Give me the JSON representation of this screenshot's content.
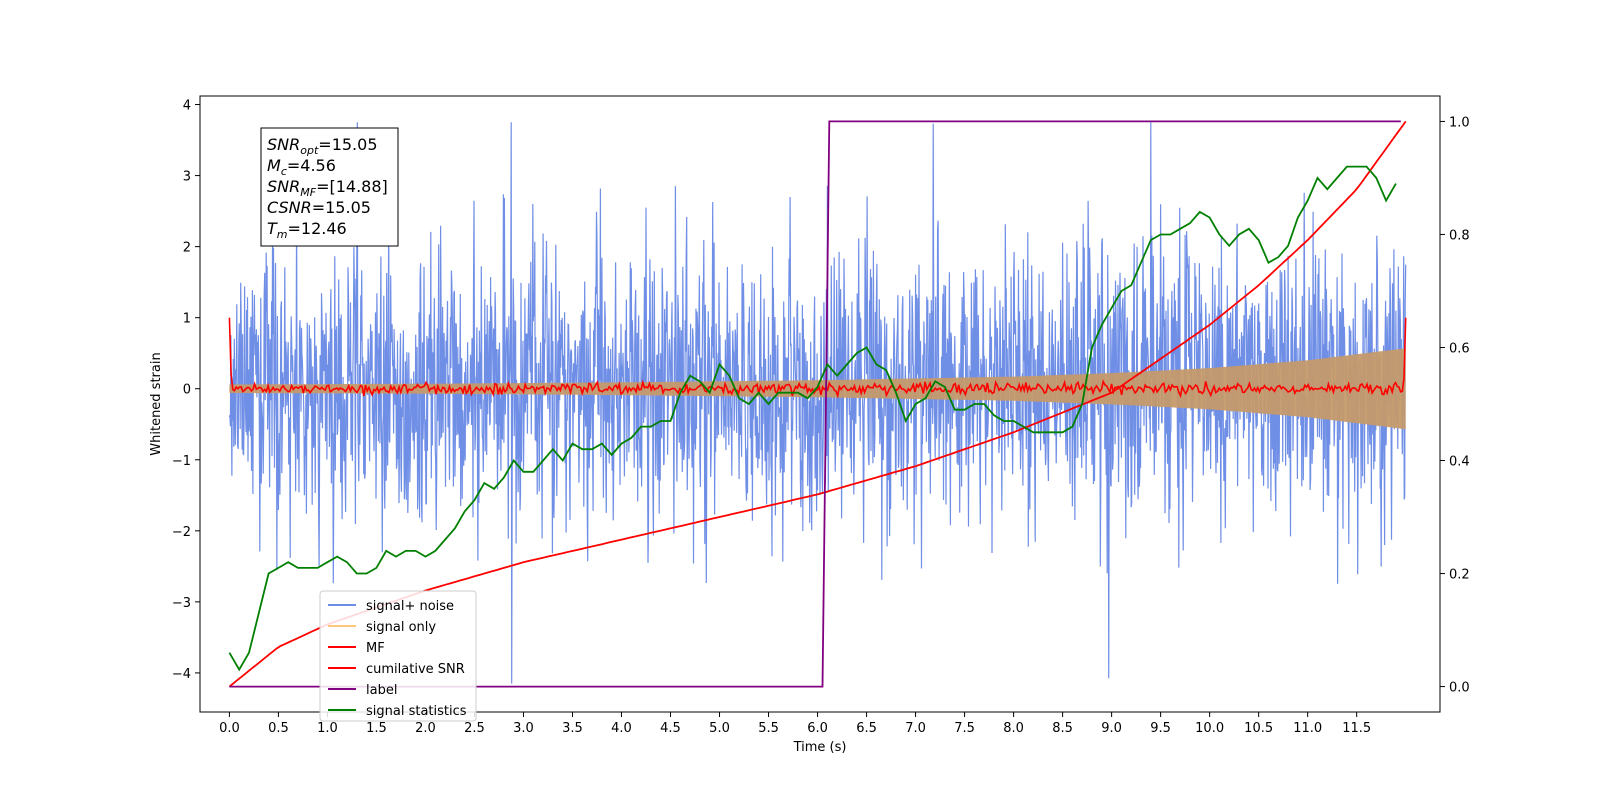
{
  "chart_data": {
    "type": "line",
    "xlabel": "Time (s)",
    "ylabel": "Whitened strain",
    "ylabel_right": "",
    "xlim": [
      -0.3,
      12.35
    ],
    "ylim": [
      -4.55,
      4.12
    ],
    "ylim_right": [
      -0.045,
      1.045
    ],
    "x_ticks": [
      "0.0",
      "0.5",
      "1.0",
      "1.5",
      "2.0",
      "2.5",
      "3.0",
      "3.5",
      "4.0",
      "4.5",
      "5.0",
      "5.5",
      "6.0",
      "6.5",
      "7.0",
      "7.5",
      "8.0",
      "8.5",
      "9.0",
      "9.5",
      "10.0",
      "10.5",
      "11.0",
      "11.5"
    ],
    "y_ticks": [
      "4",
      "3",
      "2",
      "1",
      "0",
      "−1",
      "−2",
      "−3",
      "−4"
    ],
    "y_ticks_right": [
      "1.0",
      "0.8",
      "0.6",
      "0.4",
      "0.2",
      "0.0"
    ],
    "grid": false,
    "legend_position": "lower-left",
    "stats_box": {
      "lines": [
        {
          "main": "SNR",
          "sub": "opt",
          "rest": "=15.05"
        },
        {
          "main": "M",
          "sub": "c",
          "rest": "=4.56"
        },
        {
          "main": "SNR",
          "sub": "MF",
          "rest": "=[14.88]"
        },
        {
          "main": "CSNR",
          "sub": "",
          "rest": "=15.05"
        },
        {
          "main": "T",
          "sub": "m",
          "rest": "=12.46"
        }
      ]
    },
    "series": [
      {
        "name": "signal+ noise",
        "axis": "left",
        "color": "#6f8ee6",
        "style": "noise",
        "x_range": [
          0.0,
          12.0
        ],
        "typical_amplitude": [
          -1.6,
          2.3
        ],
        "peak_min": -4.15,
        "peak_max": 3.75
      },
      {
        "name": "signal only",
        "axis": "left",
        "color": "#c49a6c",
        "style": "envelope",
        "x": [
          0.0,
          2.0,
          4.0,
          6.0,
          8.0,
          9.0,
          10.0,
          11.0,
          12.0
        ],
        "amplitude": [
          0.06,
          0.07,
          0.09,
          0.12,
          0.17,
          0.22,
          0.29,
          0.4,
          0.57
        ]
      },
      {
        "name": "MF",
        "axis": "left",
        "color": "#ff0000",
        "style": "mf",
        "x_range": [
          0.0,
          12.0
        ],
        "start_value": 1.0,
        "end_value": 1.0,
        "ripple": 0.07
      },
      {
        "name": "cumilative SNR",
        "axis": "right",
        "color": "#ff0000",
        "style": "line",
        "x": [
          0.0,
          0.5,
          1.0,
          2.0,
          3.0,
          4.0,
          5.0,
          6.0,
          7.0,
          8.0,
          9.0,
          10.0,
          10.5,
          11.0,
          11.5,
          12.0
        ],
        "y": [
          0.0,
          0.07,
          0.11,
          0.17,
          0.22,
          0.26,
          0.3,
          0.34,
          0.39,
          0.45,
          0.52,
          0.64,
          0.71,
          0.79,
          0.88,
          1.0
        ]
      },
      {
        "name": "label",
        "axis": "right",
        "color": "#800080",
        "style": "line",
        "x": [
          0.0,
          6.05,
          6.12,
          11.95
        ],
        "y": [
          0.0,
          0.0,
          1.0,
          1.0
        ]
      },
      {
        "name": "signal statistics",
        "axis": "right",
        "color": "#008000",
        "style": "line",
        "x": [
          0.0,
          0.1,
          0.2,
          0.3,
          0.4,
          0.5,
          0.6,
          0.7,
          0.8,
          0.9,
          1.0,
          1.1,
          1.2,
          1.3,
          1.4,
          1.5,
          1.6,
          1.7,
          1.8,
          1.9,
          2.0,
          2.1,
          2.2,
          2.3,
          2.4,
          2.5,
          2.6,
          2.7,
          2.8,
          2.9,
          3.0,
          3.1,
          3.2,
          3.3,
          3.4,
          3.5,
          3.6,
          3.7,
          3.8,
          3.9,
          4.0,
          4.1,
          4.2,
          4.3,
          4.4,
          4.5,
          4.6,
          4.7,
          4.8,
          4.9,
          5.0,
          5.1,
          5.2,
          5.3,
          5.4,
          5.5,
          5.6,
          5.7,
          5.8,
          5.9,
          6.0,
          6.1,
          6.2,
          6.3,
          6.4,
          6.5,
          6.6,
          6.7,
          6.8,
          6.9,
          7.0,
          7.1,
          7.2,
          7.3,
          7.4,
          7.5,
          7.6,
          7.7,
          7.8,
          7.9,
          8.0,
          8.1,
          8.2,
          8.3,
          8.4,
          8.5,
          8.6,
          8.7,
          8.8,
          8.9,
          9.0,
          9.1,
          9.2,
          9.3,
          9.4,
          9.5,
          9.6,
          9.7,
          9.8,
          9.9,
          10.0,
          10.1,
          10.2,
          10.3,
          10.4,
          10.5,
          10.6,
          10.7,
          10.8,
          10.9,
          11.0,
          11.1,
          11.2,
          11.3,
          11.4,
          11.5,
          11.6,
          11.7,
          11.8,
          11.9
        ],
        "y": [
          0.06,
          0.03,
          0.06,
          0.13,
          0.2,
          0.21,
          0.22,
          0.21,
          0.21,
          0.21,
          0.22,
          0.23,
          0.22,
          0.2,
          0.2,
          0.21,
          0.24,
          0.23,
          0.24,
          0.24,
          0.23,
          0.24,
          0.26,
          0.28,
          0.31,
          0.33,
          0.36,
          0.35,
          0.37,
          0.4,
          0.38,
          0.38,
          0.4,
          0.42,
          0.4,
          0.43,
          0.42,
          0.42,
          0.43,
          0.41,
          0.43,
          0.44,
          0.46,
          0.46,
          0.47,
          0.47,
          0.52,
          0.55,
          0.54,
          0.52,
          0.57,
          0.55,
          0.51,
          0.5,
          0.52,
          0.5,
          0.52,
          0.52,
          0.52,
          0.51,
          0.53,
          0.57,
          0.55,
          0.57,
          0.59,
          0.6,
          0.57,
          0.56,
          0.52,
          0.47,
          0.5,
          0.51,
          0.54,
          0.53,
          0.49,
          0.49,
          0.5,
          0.5,
          0.48,
          0.47,
          0.47,
          0.46,
          0.45,
          0.45,
          0.45,
          0.45,
          0.46,
          0.5,
          0.6,
          0.64,
          0.67,
          0.7,
          0.71,
          0.75,
          0.79,
          0.8,
          0.8,
          0.81,
          0.82,
          0.84,
          0.83,
          0.8,
          0.78,
          0.8,
          0.81,
          0.79,
          0.75,
          0.76,
          0.78,
          0.83,
          0.86,
          0.9,
          0.88,
          0.9,
          0.92,
          0.92,
          0.92,
          0.9,
          0.86,
          0.89
        ]
      }
    ]
  }
}
